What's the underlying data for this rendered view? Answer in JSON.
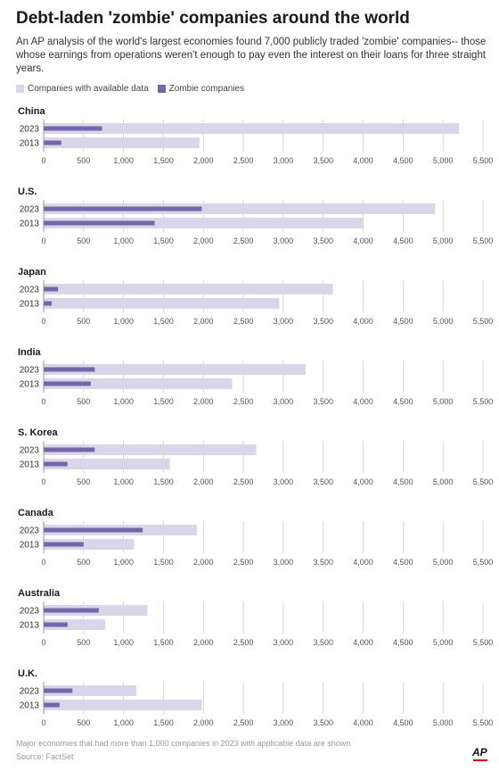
{
  "title": "Debt-laden 'zombie' companies around the world",
  "subtitle": "An AP analysis of the world's largest economies found 7,000 publicly traded 'zombie' companies-- those whose earnings from operations weren't enough to pay even the interest on their loans for three straight years.",
  "legend": {
    "available": "Companies with available data",
    "zombie": "Zombie companies"
  },
  "colors": {
    "available": "#d9d6ea",
    "zombie": "#7566aa",
    "grid": "#c8c8c8",
    "axis_text": "#555555"
  },
  "footnote": "Major economies that had more than 1,000 companies in 2023 with applicable data are shown",
  "source": "Source: FactSet",
  "logo_text": "AP",
  "chart_data": {
    "type": "bar",
    "orientation": "horizontal",
    "xlim": [
      0,
      5500
    ],
    "ticks": [
      0,
      500,
      1000,
      1500,
      2000,
      2500,
      3000,
      3500,
      4000,
      4500,
      5000,
      5500
    ],
    "tick_labels": [
      "0",
      "500",
      "1,000",
      "1,500",
      "2,000",
      "2,500",
      "3,000",
      "3,500",
      "4,000",
      "4,500",
      "5,000",
      "5,500"
    ],
    "grid": true,
    "panels": [
      {
        "country": "China",
        "rows": [
          {
            "year": "2023",
            "available": 5200,
            "zombie": 730
          },
          {
            "year": "2013",
            "available": 1950,
            "zombie": 220
          }
        ]
      },
      {
        "country": "U.S.",
        "rows": [
          {
            "year": "2023",
            "available": 4900,
            "zombie": 1980
          },
          {
            "year": "2013",
            "available": 4000,
            "zombie": 1390
          }
        ]
      },
      {
        "country": "Japan",
        "rows": [
          {
            "year": "2023",
            "available": 3620,
            "zombie": 180
          },
          {
            "year": "2013",
            "available": 2950,
            "zombie": 100
          }
        ]
      },
      {
        "country": "India",
        "rows": [
          {
            "year": "2023",
            "available": 3280,
            "zombie": 640
          },
          {
            "year": "2013",
            "available": 2360,
            "zombie": 590
          }
        ]
      },
      {
        "country": "S. Korea",
        "rows": [
          {
            "year": "2023",
            "available": 2660,
            "zombie": 640
          },
          {
            "year": "2013",
            "available": 1580,
            "zombie": 300
          }
        ]
      },
      {
        "country": "Canada",
        "rows": [
          {
            "year": "2023",
            "available": 1920,
            "zombie": 1240
          },
          {
            "year": "2013",
            "available": 1130,
            "zombie": 500
          }
        ]
      },
      {
        "country": "Australia",
        "rows": [
          {
            "year": "2023",
            "available": 1300,
            "zombie": 690
          },
          {
            "year": "2013",
            "available": 770,
            "zombie": 300
          }
        ]
      },
      {
        "country": "U.K.",
        "rows": [
          {
            "year": "2023",
            "available": 1160,
            "zombie": 360
          },
          {
            "year": "2013",
            "available": 1980,
            "zombie": 200
          }
        ]
      }
    ]
  }
}
